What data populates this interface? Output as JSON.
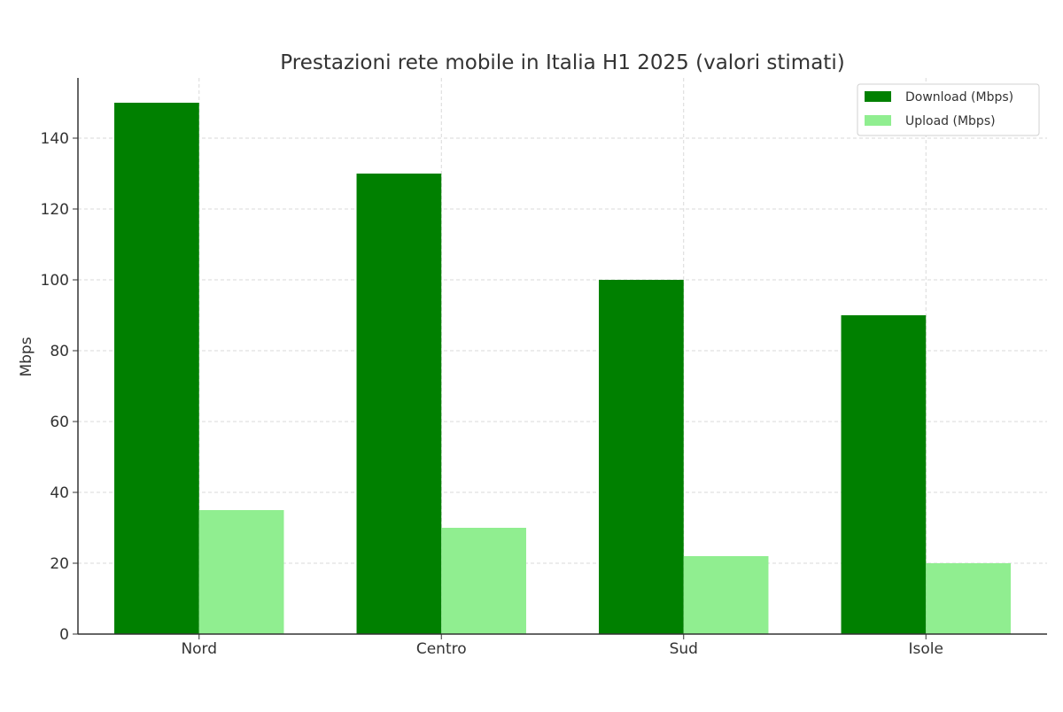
{
  "chart_data": {
    "type": "bar",
    "title": "Prestazioni rete mobile in Italia H1 2025 (valori stimati)",
    "xlabel": "",
    "ylabel": "Mbps",
    "categories": [
      "Nord",
      "Centro",
      "Sud",
      "Isole"
    ],
    "series": [
      {
        "name": "Download (Mbps)",
        "values": [
          150,
          130,
          100,
          90
        ],
        "color": "#008000"
      },
      {
        "name": "Upload (Mbps)",
        "values": [
          35,
          30,
          22,
          20
        ],
        "color": "#90EE90"
      }
    ],
    "ylim": [
      0,
      157
    ],
    "yticks": [
      0,
      20,
      40,
      60,
      80,
      100,
      120,
      140
    ],
    "grid": true,
    "legend_position": "top-right"
  }
}
